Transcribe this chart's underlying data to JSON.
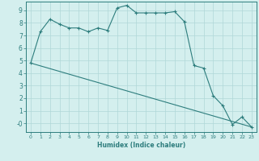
{
  "xlabel": "Humidex (Indice chaleur)",
  "ylabel": "",
  "background_color": "#d4efee",
  "line_color": "#2d7d7d",
  "grid_color": "#b0d8d8",
  "xlim": [
    -0.5,
    23.5
  ],
  "ylim": [
    -0.7,
    9.7
  ],
  "x_ticks": [
    0,
    1,
    2,
    3,
    4,
    5,
    6,
    7,
    8,
    9,
    10,
    11,
    12,
    13,
    14,
    15,
    16,
    17,
    18,
    19,
    20,
    21,
    22,
    23
  ],
  "y_ticks": [
    0,
    1,
    2,
    3,
    4,
    5,
    6,
    7,
    8,
    9
  ],
  "y_labels": [
    "-0",
    "1",
    "2",
    "3",
    "4",
    "5",
    "6",
    "7",
    "8",
    "9"
  ],
  "curve1_x": [
    0,
    1,
    2,
    3,
    4,
    5,
    6,
    7,
    8,
    9,
    10,
    11,
    12,
    13,
    14,
    15,
    16,
    17,
    18,
    19,
    20,
    21,
    22,
    23
  ],
  "curve1_y": [
    4.8,
    7.3,
    8.3,
    7.9,
    7.6,
    7.6,
    7.3,
    7.6,
    7.4,
    9.2,
    9.4,
    8.8,
    8.8,
    8.8,
    8.8,
    8.9,
    8.1,
    4.6,
    4.4,
    2.2,
    1.4,
    -0.1,
    0.5,
    -0.3
  ],
  "curve2_x": [
    0,
    23
  ],
  "curve2_y": [
    4.8,
    -0.3
  ]
}
